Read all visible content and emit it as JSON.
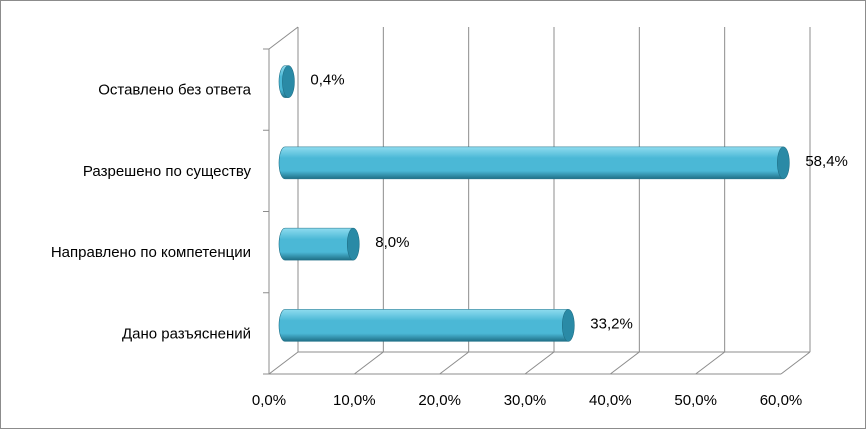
{
  "chart_data": {
    "type": "bar",
    "orientation": "horizontal",
    "style": "3d-cylinder",
    "categories": [
      "Дано разъяснений",
      "Направлено по компетенции",
      "Разрешено по существу",
      "Оставлено без ответа"
    ],
    "values": [
      33.2,
      8.0,
      58.4,
      0.4
    ],
    "data_labels": [
      "33,2%",
      "8,0%",
      "58,4%",
      "0,4%"
    ],
    "xlim": [
      0,
      60
    ],
    "x_ticks": [
      0,
      10,
      20,
      30,
      40,
      50,
      60
    ],
    "x_tick_labels": [
      "0,0%",
      "10,0%",
      "20,0%",
      "30,0%",
      "40,0%",
      "50,0%",
      "60,0%"
    ],
    "title": "",
    "xlabel": "",
    "ylabel": "",
    "grid": true,
    "legend": "none",
    "colors": {
      "bar_main": "#4bb8d6",
      "bar_light": "#8fdcef",
      "bar_dark": "#1f6f86",
      "bar_cap": "#2a8aa6",
      "grid": "#8c8c8c"
    }
  }
}
